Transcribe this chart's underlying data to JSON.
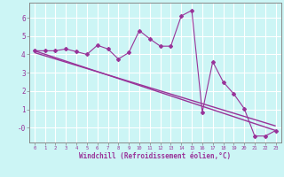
{
  "xlabel": "Windchill (Refroidissement éolien,°C)",
  "bg_color": "#ccf5f5",
  "line_color": "#993399",
  "x_data": [
    0,
    1,
    2,
    3,
    4,
    5,
    6,
    7,
    8,
    9,
    10,
    11,
    12,
    13,
    14,
    15,
    16,
    17,
    18,
    19,
    20,
    21,
    22,
    23
  ],
  "y_zigzag": [
    4.2,
    4.2,
    4.2,
    4.3,
    4.15,
    4.0,
    4.5,
    4.3,
    3.75,
    4.1,
    5.3,
    4.85,
    4.45,
    4.45,
    6.1,
    6.4,
    0.85,
    3.6,
    2.5,
    1.85,
    1.05,
    -0.45,
    -0.45,
    -0.15
  ],
  "trend1_x": [
    0,
    23
  ],
  "trend1_y": [
    4.2,
    -0.15
  ],
  "trend2_x": [
    0,
    23
  ],
  "trend2_y": [
    4.1,
    0.1
  ],
  "ylim": [
    -0.8,
    6.8
  ],
  "xlim": [
    -0.5,
    23.5
  ],
  "yticks": [
    0,
    1,
    2,
    3,
    4,
    5,
    6
  ],
  "ytick_labels": [
    "-0",
    "1",
    "2",
    "3",
    "4",
    "5",
    "6"
  ],
  "xticks": [
    0,
    1,
    2,
    3,
    4,
    5,
    6,
    7,
    8,
    9,
    10,
    11,
    12,
    13,
    14,
    15,
    16,
    17,
    18,
    19,
    20,
    21,
    22,
    23
  ]
}
